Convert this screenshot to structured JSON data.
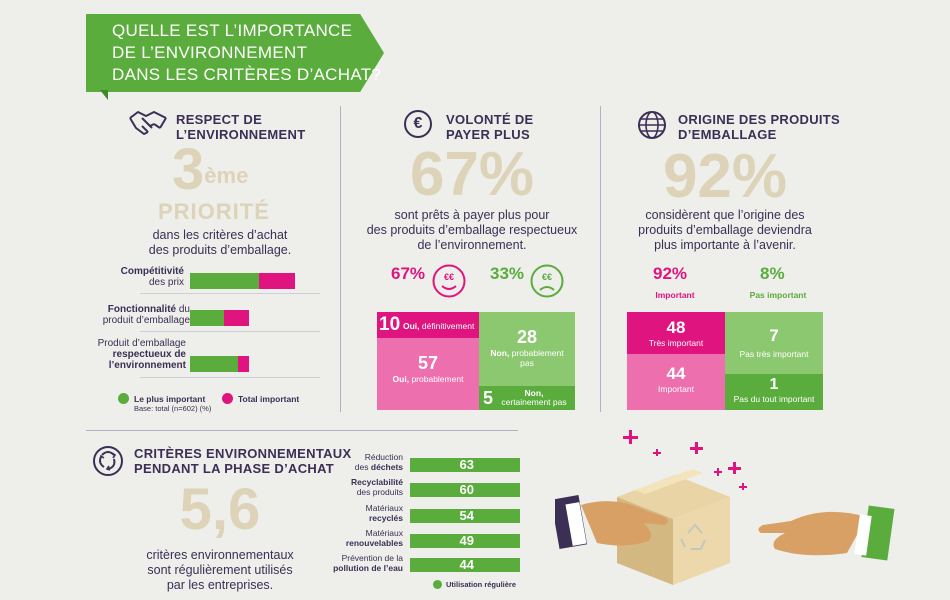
{
  "banner": {
    "line1": "QUELLE EST L’IMPORTANCE",
    "line2": "DE L’ENVIRONNEMENT",
    "line3": "DANS LES CRITÈRES D’ACHAT?"
  },
  "respect": {
    "title1": "RESPECT DE",
    "title2": "L’ENVIRONNEMENT",
    "big_number": "3",
    "big_sup": "ème",
    "big_word": "PRIORITÉ",
    "desc1": "dans les critères d’achat",
    "desc2": "des produits d’emballage.",
    "bars": [
      {
        "bold1": "Compétitivité",
        "normal1": "",
        "line2": "des prix",
        "line3": "",
        "plus_important": 0.58,
        "total_important": 0.93
      },
      {
        "bold1": "Fonctionnalité",
        "normal1": " du",
        "line2": "produit d’emballage",
        "line3": "",
        "plus_important": 0.31,
        "total_important": 0.52
      },
      {
        "bold1": "",
        "normal1": "Produit d’emballage",
        "line2": "respectueux de",
        "line3": "l’environnement",
        "plus_important": 0.43,
        "total_important": 0.52
      }
    ],
    "legend_green": "Le plus important",
    "legend_pink": "Total important",
    "base": "Base: total (n=602) (%)"
  },
  "payer": {
    "title1": "VOLONTÉ DE",
    "title2": "PAYER PLUS",
    "big": "67%",
    "desc1": "sont prêts à payer plus pour",
    "desc2": "des produits d’emballage respectueux",
    "desc3": "de l’environnement.",
    "yes_pct": "67%",
    "no_pct": "33%",
    "euro_label": "€€",
    "sq1_num": "10",
    "sq1_bold": "Oui,",
    "sq1_text": "définitivement",
    "sq2_num": "57",
    "sq2_bold": "Oui,",
    "sq2_text": "probablement",
    "sq3_num": "28",
    "sq3_bold": "Non,",
    "sq3_text": "probablement",
    "sq3_text2": "pas",
    "sq4_num": "5",
    "sq4_bold": "Non,",
    "sq4_text": "certainement pas"
  },
  "origine": {
    "title1": "ORIGINE DES PRODUITS",
    "title2": "D’EMBALLAGE",
    "big": "92%",
    "desc1": "considèrent que l’origine des",
    "desc2": "produits d’emballage deviendra",
    "desc3": "plus importante à l’avenir.",
    "imp_pct": "92%",
    "imp_label": "Important",
    "pas_pct": "8%",
    "pas_label": "Pas important",
    "sq1_num": "48",
    "sq1_text": "Très important",
    "sq2_num": "44",
    "sq2_text": "Important",
    "sq3_num": "7",
    "sq3_text": "Pas très important",
    "sq4_num": "1",
    "sq4_text": "Pas du tout important"
  },
  "criteres": {
    "title1": "CRITÈRES ENVIRONNEMENTAUX",
    "title2": "PENDANT LA PHASE D’ACHAT",
    "big": "5,6",
    "desc1": "critères environnementaux",
    "desc2": "sont régulièrement utilisés",
    "desc3": "par les entreprises.",
    "legend": "Utilisation régulière",
    "items": [
      {
        "l1": "Réduction",
        "l2pre": "des ",
        "l2bold": "déchets",
        "l2post": "",
        "value": "63"
      },
      {
        "l1": "",
        "l1bold": "Recyclabilité",
        "l2pre": "des produits",
        "l2bold": "",
        "l2post": "",
        "value": "60"
      },
      {
        "l1": "Matériaux",
        "l2pre": "",
        "l2bold": "recyclés",
        "l2post": "",
        "value": "54"
      },
      {
        "l1": "Matériaux",
        "l2pre": "",
        "l2bold": "renouvelables",
        "l2post": "",
        "value": "49"
      },
      {
        "l1": "Prévention de la",
        "l2pre": "",
        "l2bold": "pollution de l’eau",
        "l2post": "",
        "value": "44"
      }
    ]
  },
  "colors": {
    "green": "#5aac3c",
    "pink": "#e0147e",
    "light_pink": "#ee6fae",
    "light_green": "#8cc870",
    "navy": "#3b2f55",
    "beige": "#ddd3b8"
  }
}
